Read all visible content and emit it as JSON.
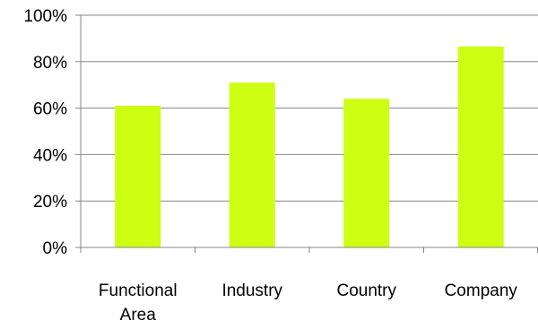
{
  "chart_data": {
    "type": "bar",
    "categories": [
      [
        "Functional",
        "Area"
      ],
      [
        "Industry"
      ],
      [
        "Country"
      ],
      [
        "Company"
      ]
    ],
    "values": [
      61,
      71,
      64,
      86.5
    ],
    "ylim": [
      0,
      100
    ],
    "yticks": [
      "0%",
      "20%",
      "40%",
      "60%",
      "80%",
      "100%"
    ],
    "grid": true,
    "legend": "none",
    "colors": {
      "bar": "#CCFF11",
      "grid": "#868686",
      "axis": "#868686",
      "text": "#000000"
    }
  }
}
